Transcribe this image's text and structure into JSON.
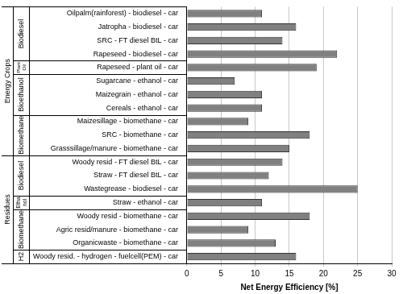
{
  "chart_data": {
    "type": "bar",
    "orientation": "horizontal",
    "categories": [
      "Oilpalm(rainforest) - biodiesel - car",
      "Jatropha - biodiesel - car",
      "SRC - FT diesel BtL - car",
      "Rapeseed - biodiesel - car",
      "Rapeseed - plant oil - car",
      "Sugarcane - ethanol - car",
      "Maizegrain - ethanol - car",
      "Cereals - ethanol - car",
      "Maizesillage - biomethane - car",
      "SRC - biomethane - car",
      "Grasssillage/manure - biomethane - car",
      "Woody resid - FT diesel BtL - car",
      "Straw - FT diesel BtL - car",
      "Wastegrease - biodiesel - car",
      "Straw - ethanol - car",
      "Woody resid - biomethane - car",
      "Agric resid/manure - biomethane - car",
      "Organicwaste - biomethane - car",
      "Woody resid. - hydrogen - fuelcell(PEM) - car"
    ],
    "values": [
      11,
      16,
      14,
      22,
      19,
      7,
      11,
      11,
      9,
      18,
      15,
      14,
      12,
      25,
      11,
      18,
      9,
      13,
      16
    ],
    "color": "#808080",
    "xlabel": "Net Energy Efficiency [%]",
    "xlim": [
      0,
      30
    ],
    "xticks": [
      0,
      5,
      10,
      15,
      20,
      25,
      30
    ],
    "grid": true,
    "groups": [
      {
        "name": "Energy Crops",
        "subgroups": [
          {
            "name": "Biodiesel",
            "count": 4
          },
          {
            "name": "Plant Oil",
            "count": 1
          },
          {
            "name": "Bioethanol",
            "count": 3
          },
          {
            "name": "Biomethane",
            "count": 3
          }
        ]
      },
      {
        "name": "Residues",
        "subgroups": [
          {
            "name": "Biodiesel",
            "count": 3
          },
          {
            "name": "Ethanol",
            "count": 1
          },
          {
            "name": "Biomethane",
            "count": 3
          },
          {
            "name": "H2",
            "count": 1
          }
        ]
      }
    ]
  }
}
